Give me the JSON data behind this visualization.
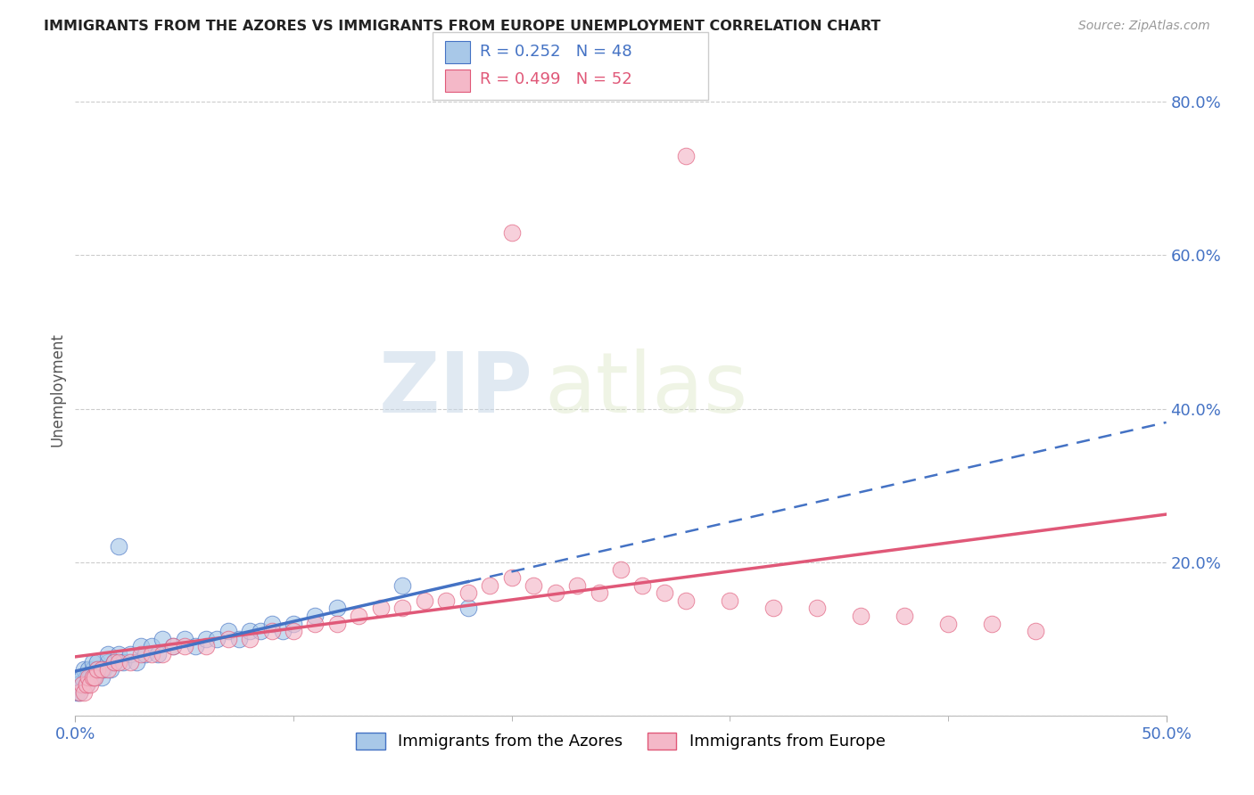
{
  "title": "IMMIGRANTS FROM THE AZORES VS IMMIGRANTS FROM EUROPE UNEMPLOYMENT CORRELATION CHART",
  "source": "Source: ZipAtlas.com",
  "ylabel": "Unemployment",
  "legend_label1": "Immigrants from the Azores",
  "legend_label2": "Immigrants from Europe",
  "R1": "0.252",
  "N1": "48",
  "R2": "0.499",
  "N2": "52",
  "color_blue": "#a8c8e8",
  "color_pink": "#f4b8c8",
  "color_blue_line": "#4472C4",
  "color_pink_line": "#e05878",
  "watermark_zip": "ZIP",
  "watermark_atlas": "atlas",
  "xlim": [
    0.0,
    0.5
  ],
  "ylim": [
    0.0,
    0.85
  ],
  "x_ticks_major": [
    0.0,
    0.5
  ],
  "x_tick_major_labels": [
    "0.0%",
    "50.0%"
  ],
  "x_ticks_minor": [
    0.1,
    0.2,
    0.3,
    0.4
  ],
  "y_ticks": [
    0.0,
    0.2,
    0.4,
    0.6,
    0.8
  ],
  "y_tick_labels": [
    "",
    "20.0%",
    "40.0%",
    "60.0%",
    "80.0%"
  ],
  "blue_x": [
    0.002,
    0.003,
    0.004,
    0.005,
    0.005,
    0.006,
    0.007,
    0.008,
    0.008,
    0.009,
    0.01,
    0.01,
    0.012,
    0.013,
    0.015,
    0.015,
    0.016,
    0.018,
    0.02,
    0.02,
    0.022,
    0.025,
    0.028,
    0.03,
    0.032,
    0.035,
    0.038,
    0.04,
    0.045,
    0.05,
    0.055,
    0.06,
    0.065,
    0.07,
    0.075,
    0.08,
    0.085,
    0.09,
    0.095,
    0.1,
    0.11,
    0.12,
    0.15,
    0.18,
    0.0005,
    0.001,
    0.002,
    0.003
  ],
  "blue_y": [
    0.05,
    0.04,
    0.06,
    0.04,
    0.05,
    0.06,
    0.05,
    0.06,
    0.07,
    0.05,
    0.06,
    0.07,
    0.05,
    0.06,
    0.07,
    0.08,
    0.06,
    0.07,
    0.08,
    0.22,
    0.07,
    0.08,
    0.07,
    0.09,
    0.08,
    0.09,
    0.08,
    0.1,
    0.09,
    0.1,
    0.09,
    0.1,
    0.1,
    0.11,
    0.1,
    0.11,
    0.11,
    0.12,
    0.11,
    0.12,
    0.13,
    0.14,
    0.17,
    0.14,
    0.03,
    0.04,
    0.03,
    0.05
  ],
  "pink_x": [
    0.002,
    0.003,
    0.004,
    0.005,
    0.006,
    0.007,
    0.008,
    0.009,
    0.01,
    0.012,
    0.015,
    0.018,
    0.02,
    0.025,
    0.03,
    0.035,
    0.04,
    0.045,
    0.05,
    0.06,
    0.07,
    0.08,
    0.09,
    0.1,
    0.11,
    0.12,
    0.13,
    0.14,
    0.15,
    0.16,
    0.17,
    0.18,
    0.19,
    0.2,
    0.21,
    0.22,
    0.23,
    0.24,
    0.25,
    0.26,
    0.27,
    0.28,
    0.3,
    0.32,
    0.34,
    0.36,
    0.38,
    0.4,
    0.42,
    0.44,
    0.2,
    0.28
  ],
  "pink_y": [
    0.03,
    0.04,
    0.03,
    0.04,
    0.05,
    0.04,
    0.05,
    0.05,
    0.06,
    0.06,
    0.06,
    0.07,
    0.07,
    0.07,
    0.08,
    0.08,
    0.08,
    0.09,
    0.09,
    0.09,
    0.1,
    0.1,
    0.11,
    0.11,
    0.12,
    0.12,
    0.13,
    0.14,
    0.14,
    0.15,
    0.15,
    0.16,
    0.17,
    0.18,
    0.17,
    0.16,
    0.17,
    0.16,
    0.19,
    0.17,
    0.16,
    0.15,
    0.15,
    0.14,
    0.14,
    0.13,
    0.13,
    0.12,
    0.12,
    0.11,
    0.63,
    0.73
  ]
}
